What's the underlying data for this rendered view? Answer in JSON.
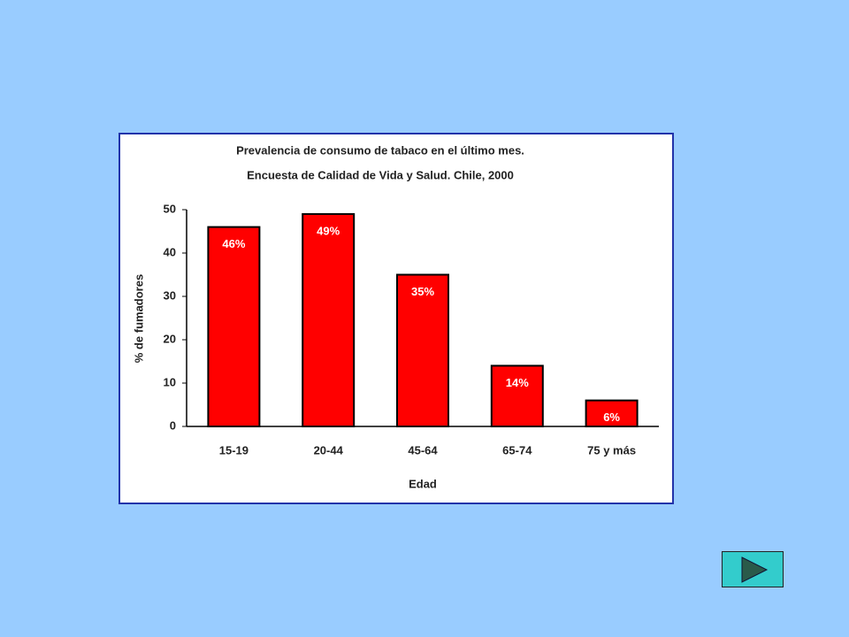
{
  "chart_data": {
    "type": "bar",
    "title": [
      "Prevalencia de consumo de tabaco en el último mes.",
      "Encuesta de Calidad de Vida y Salud. Chile, 2000"
    ],
    "x_label": "Edad",
    "y_label": "% de fumadores",
    "categories": [
      "15-19",
      "20-44",
      "45-64",
      "65-74",
      "75 y más"
    ],
    "values": [
      46,
      49,
      35,
      14,
      6
    ],
    "value_labels": [
      "46%",
      "49%",
      "35%",
      "14%",
      "6%"
    ],
    "color": "#ff0000",
    "ylim": [
      0,
      50
    ],
    "yticks": [
      0,
      10,
      20,
      30,
      40,
      50
    ]
  }
}
